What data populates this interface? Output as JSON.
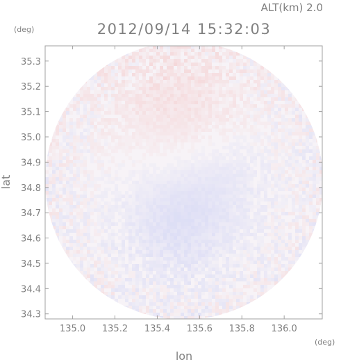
{
  "header": {
    "altitude_label": "ALT(km)  2.0",
    "timestamp": "2012/09/14 15:32:03"
  },
  "chart_data": {
    "type": "heatmap",
    "title": "2012/09/14 15:32:03",
    "xlabel": "lon",
    "ylabel": "lat",
    "x_unit": "(deg)",
    "y_unit": "(deg)",
    "xlim": [
      134.87,
      136.18
    ],
    "ylim": [
      34.28,
      35.36
    ],
    "xticks": [
      "135.0",
      "135.2",
      "135.4",
      "135.6",
      "135.8",
      "136.0"
    ],
    "yticks": [
      "34.3",
      "34.4",
      "34.5",
      "34.6",
      "34.7",
      "34.8",
      "34.9",
      "35.0",
      "35.1",
      "35.2",
      "35.3"
    ],
    "grid": false,
    "coverage": "circular",
    "colors": {
      "positive": "#f4c8c8",
      "negative": "#c8cdf4",
      "neutral": "#f7f3f7",
      "axis": "#a0a0a0"
    }
  }
}
